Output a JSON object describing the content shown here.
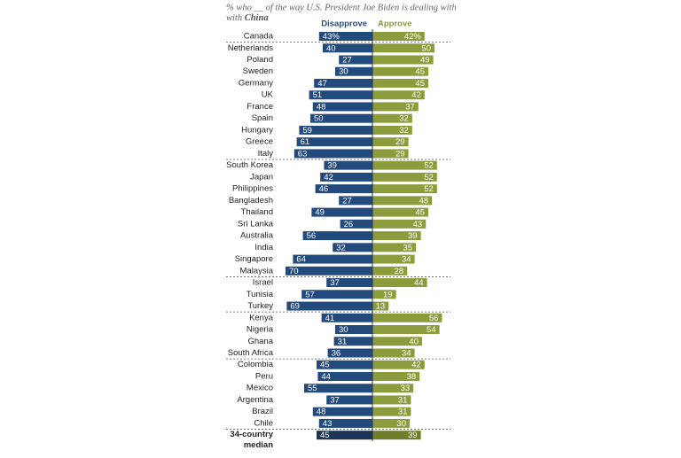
{
  "chart_data": {
    "type": "diverging-bar",
    "title": "% who __ of the way U.S. President Joe Biden is dealing with",
    "title_emphasis": "China",
    "categories": [
      "Canada",
      "Netherlands",
      "Poland",
      "Sweden",
      "Germany",
      "UK",
      "France",
      "Spain",
      "Hungary",
      "Greece",
      "Italy",
      "South Korea",
      "Japan",
      "Philippines",
      "Bangladesh",
      "Thailand",
      "Sri Lanka",
      "Australia",
      "India",
      "Singapore",
      "Malaysia",
      "Israel",
      "Tunisia",
      "Turkey",
      "Kenya",
      "Nigeria",
      "Ghana",
      "South Africa",
      "Colombia",
      "Peru",
      "Mexico",
      "Argentina",
      "Brazil",
      "Chile"
    ],
    "series": [
      {
        "name": "Disapprove",
        "color": "#234a7c",
        "side": "left",
        "values": [
          43,
          40,
          27,
          30,
          47,
          51,
          48,
          50,
          59,
          61,
          63,
          39,
          42,
          46,
          27,
          49,
          26,
          56,
          32,
          64,
          70,
          37,
          57,
          69,
          41,
          30,
          31,
          36,
          45,
          44,
          55,
          37,
          48,
          43
        ],
        "value_labels": [
          "43%",
          null,
          null,
          null,
          null,
          null,
          null,
          null,
          null,
          null,
          null,
          null,
          null,
          null,
          null,
          null,
          null,
          null,
          null,
          null,
          null,
          null,
          null,
          null,
          null,
          null,
          null,
          null,
          null,
          null,
          null,
          null,
          null,
          null
        ]
      },
      {
        "name": "Approve",
        "color": "#8c9c3d",
        "side": "right",
        "values": [
          42,
          50,
          49,
          45,
          45,
          42,
          37,
          32,
          32,
          29,
          29,
          52,
          52,
          52,
          48,
          45,
          43,
          39,
          35,
          34,
          28,
          44,
          19,
          13,
          56,
          54,
          40,
          34,
          42,
          38,
          33,
          31,
          31,
          30
        ],
        "value_labels": [
          "42%",
          null,
          null,
          null,
          null,
          null,
          null,
          null,
          null,
          null,
          null,
          null,
          null,
          null,
          null,
          null,
          null,
          null,
          null,
          null,
          null,
          null,
          null,
          null,
          null,
          null,
          null,
          null,
          null,
          null,
          null,
          null,
          null,
          null
        ]
      }
    ],
    "separators_after": [
      0,
      10,
      20,
      23,
      27,
      33
    ],
    "median": {
      "label_lines": [
        "34-country",
        "median"
      ],
      "values": [
        45,
        39
      ],
      "colors": [
        "#1c3557",
        "#6f7d2c"
      ]
    }
  }
}
